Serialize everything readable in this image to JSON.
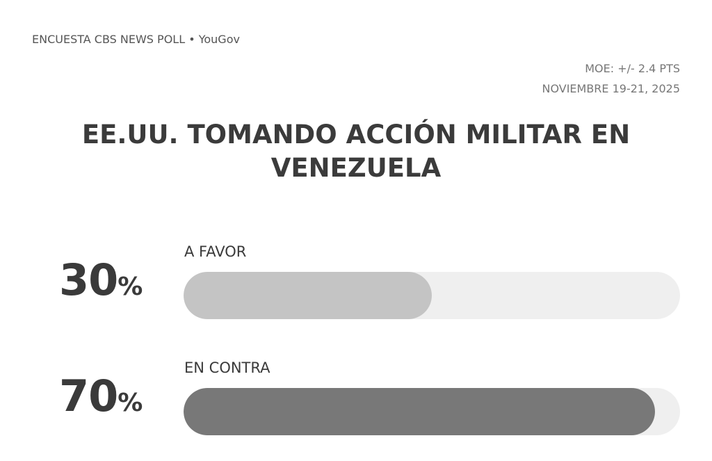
{
  "header": {
    "source": "ENCUESTA CBS NEWS POLL • YouGov",
    "moe": "MOE: +/- 2.4 PTS",
    "dates": "NOVIEMBRE 19-21, 2025"
  },
  "chart_data": {
    "type": "bar",
    "orientation": "horizontal",
    "title": "EE.UU. TOMANDO ACCIÓN MILITAR EN VENEZUELA",
    "categories": [
      "A FAVOR",
      "EN CONTRA"
    ],
    "values": [
      30,
      70
    ],
    "value_labels": [
      "30",
      "70"
    ],
    "unit": "%",
    "colors": [
      "#c4c4c4",
      "#787878"
    ],
    "track_color": "#efefef",
    "fill_fractions": [
      0.5,
      0.95
    ],
    "xlim": [
      0,
      100
    ],
    "grid": false
  }
}
